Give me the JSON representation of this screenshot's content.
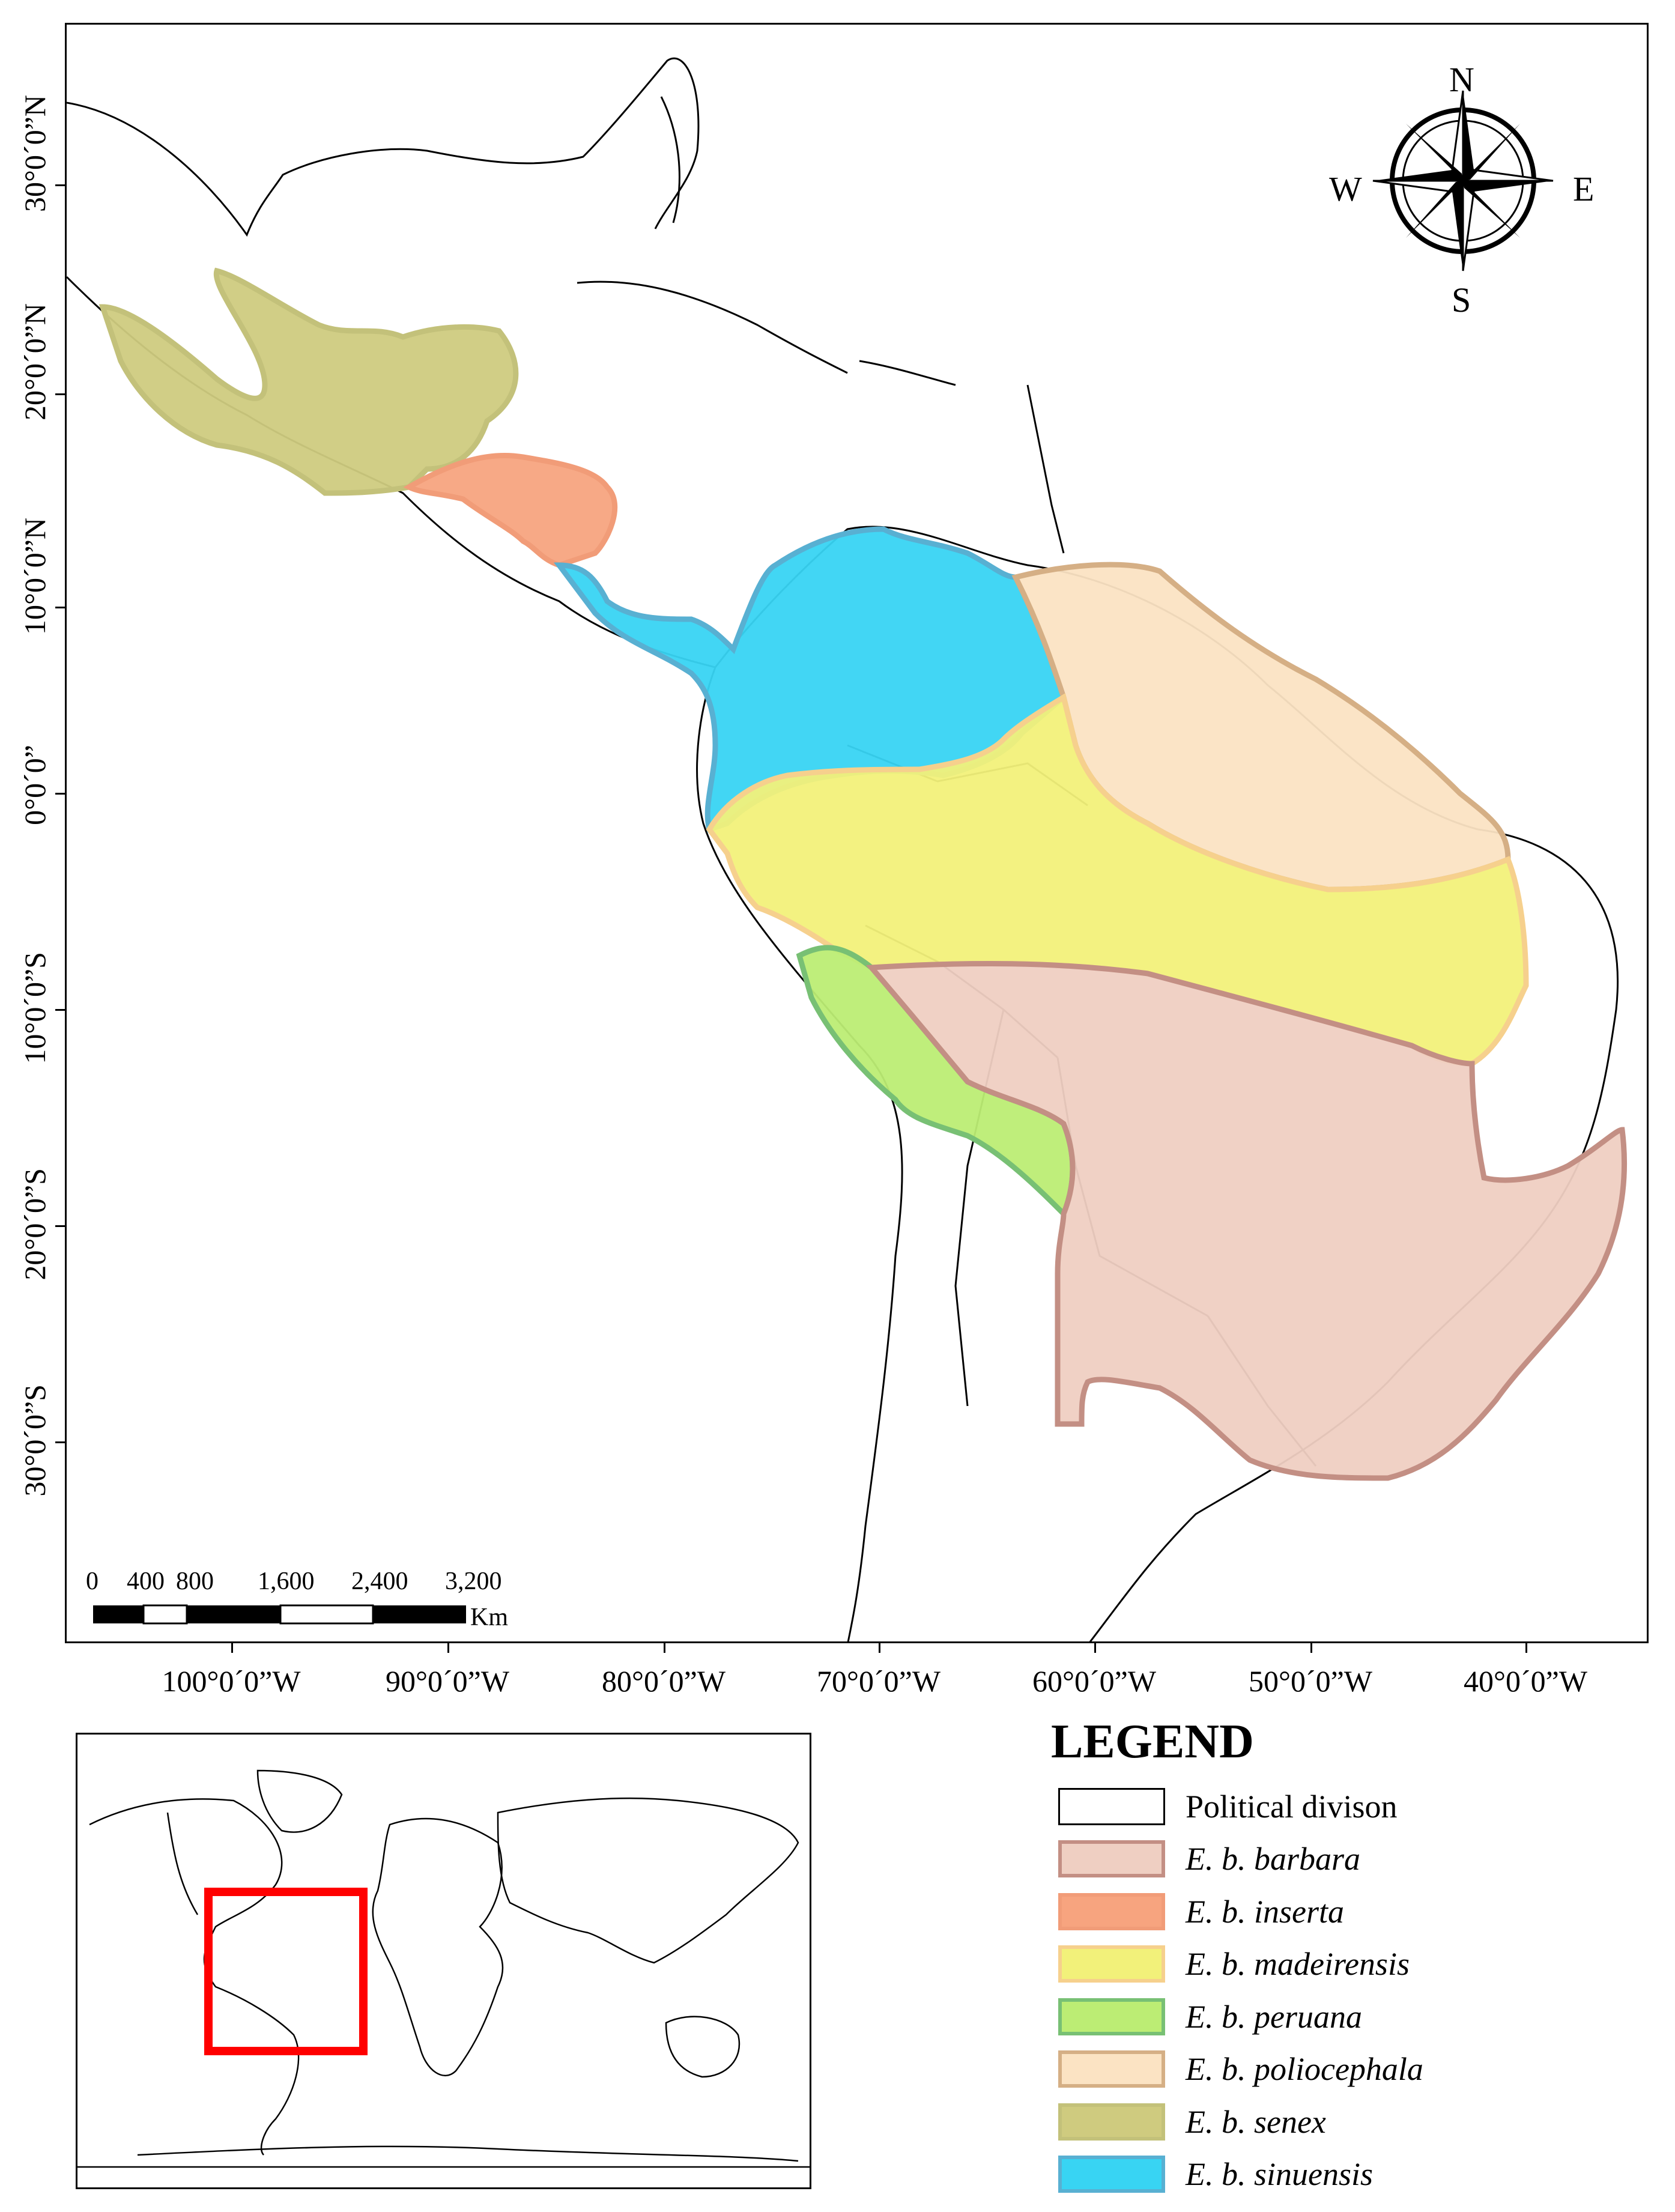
{
  "latitude_labels": [
    "30°0´0”N",
    "20°0´0”N",
    "10°0´0”N",
    "0°0´0”",
    "10°0´0”S",
    "20°0´0”S",
    "30°0´0”S"
  ],
  "longitude_labels": [
    "100°0´0”W",
    "90°0´0”W",
    "80°0´0”W",
    "70°0´0”W",
    "60°0´0”W",
    "50°0´0”W",
    "40°0´0”W"
  ],
  "compass": {
    "north": "N",
    "south": "S",
    "east": "E",
    "west": "W"
  },
  "scale_bar": {
    "ticks": [
      "0",
      "400",
      "800",
      "1,600",
      "2,400",
      "3,200"
    ],
    "unit": "Km"
  },
  "legend": {
    "title": "LEGEND",
    "items": [
      {
        "label": "Political divison",
        "fill": "#ffffff",
        "border": "#000000",
        "italic": false
      },
      {
        "label": "E. b. barbara",
        "fill": "#efcfc2",
        "border": "#c38f84",
        "italic": true
      },
      {
        "label": "E. b. inserta",
        "fill": "#f7a47f",
        "border": "#f19c78",
        "italic": true
      },
      {
        "label": "E. b. madeirensis",
        "fill": "#f2f17a",
        "border": "#f6d08d",
        "italic": true
      },
      {
        "label": "E. b. peruana",
        "fill": "#bced74",
        "border": "#78c074",
        "italic": true
      },
      {
        "label": "E. b. poliocephala",
        "fill": "#fbe3c3",
        "border": "#d5af85",
        "italic": true
      },
      {
        "label": "E. b. senex",
        "fill": "#cfcb7f",
        "border": "#c3c17a",
        "italic": true
      },
      {
        "label": "E. b. sinuensis",
        "fill": "#38d4f3",
        "border": "#58b0d2",
        "italic": true
      }
    ]
  },
  "inset_highlight_color": "#ff0000"
}
